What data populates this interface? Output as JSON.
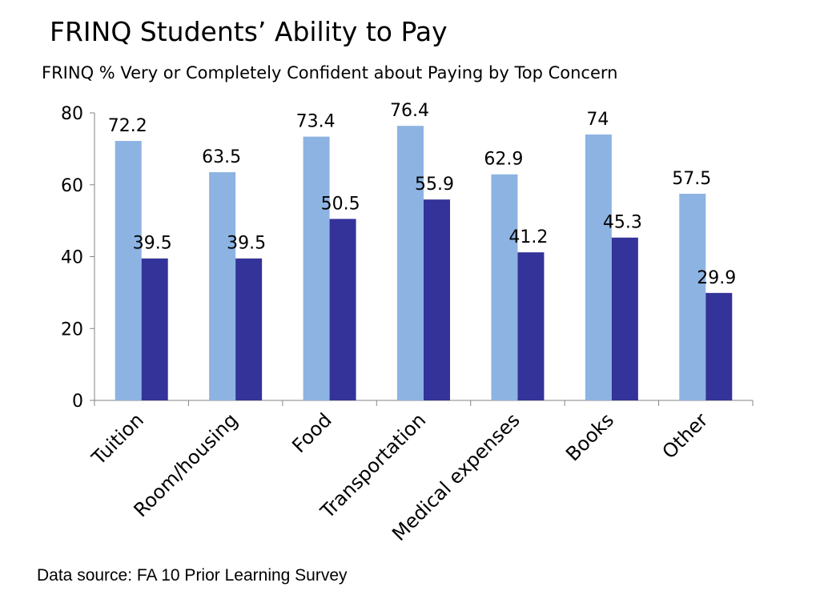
{
  "title": "FRINQ Students’ Ability to Pay",
  "subtitle": "FRINQ % Very or Completely Confident about Paying by Top Concern",
  "source": "Data source:  FA 10 Prior Learning Survey",
  "chart_data": {
    "type": "bar",
    "categories": [
      "Tuition",
      "Room/housing",
      "Food",
      "Transportation",
      "Medical expenses",
      "Books",
      "Other"
    ],
    "series": [
      {
        "values": [
          72.2,
          63.5,
          73.4,
          76.4,
          62.9,
          74,
          57.5
        ],
        "color": "#8db3e2"
      },
      {
        "values": [
          39.5,
          39.5,
          50.5,
          55.9,
          41.2,
          45.3,
          29.9
        ],
        "color": "#333399"
      }
    ],
    "ylim": [
      0,
      80
    ],
    "yticks": [
      0,
      20,
      40,
      60,
      80
    ],
    "grid": false,
    "legend": "none"
  }
}
